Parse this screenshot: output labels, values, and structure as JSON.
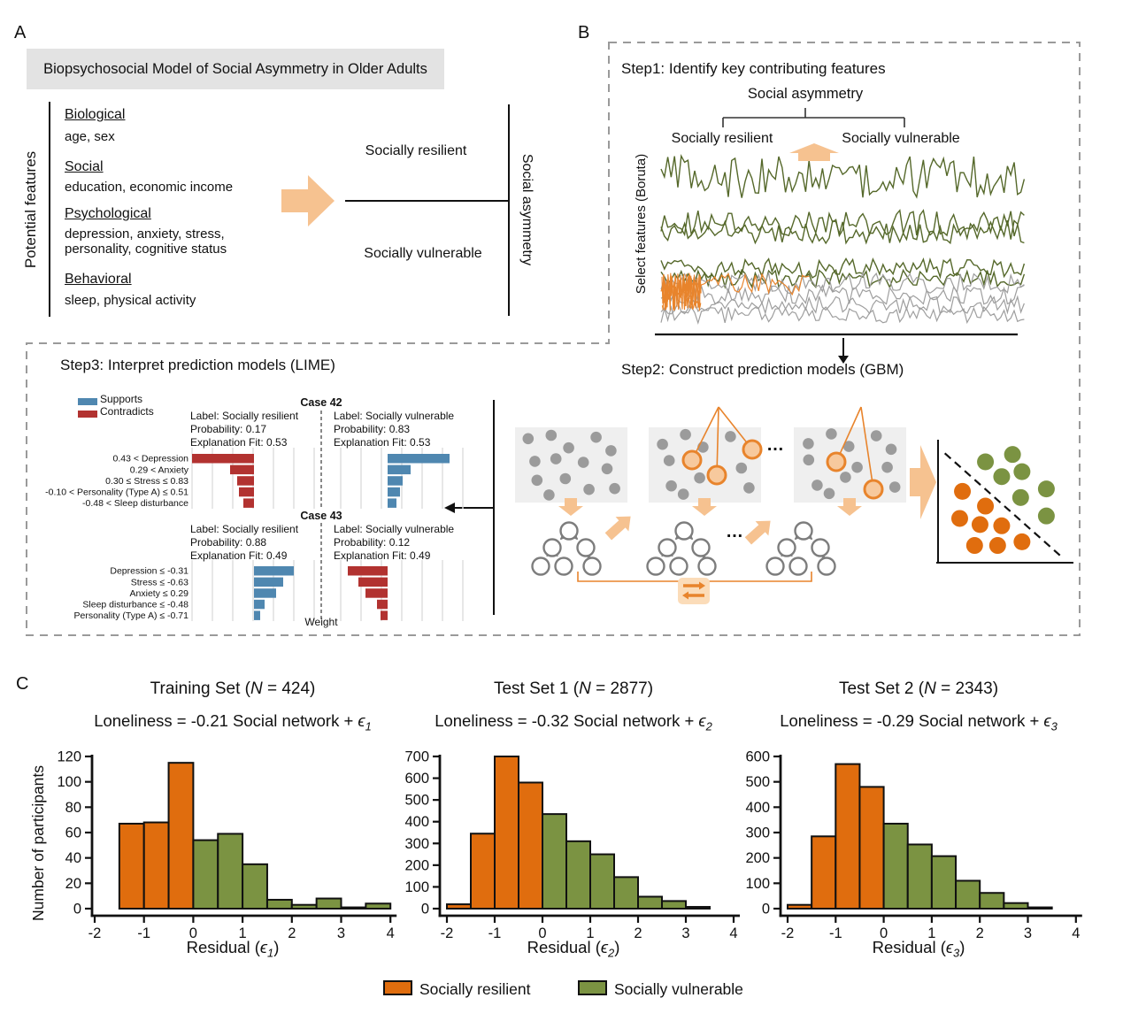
{
  "palette": {
    "resilient": "#e06d0e",
    "vulnerable": "#7b9342",
    "supports": "#4f87b0",
    "contradicts": "#b23230",
    "accent_arrow": "#f6c290",
    "accent_orange": "#e8842c",
    "ring_fill": "#f7c99d",
    "icon_bg": "#fbdcb9",
    "line_olive": "#55682a",
    "line_gray": "#9e9e9e",
    "box_bg": "#efefef",
    "dot_gray": "#9b9b9b",
    "title_bar_bg": "#e3e3e3",
    "dash_border": "#9a9a9a"
  },
  "panel_a": {
    "label": "A",
    "title": "Biopsychosocial Model of Social Asymmetry in Older Adults",
    "left_axis_label": "Potential features",
    "right_axis_label": "Social asymmetry",
    "features": [
      {
        "heading": "Biological",
        "detail": "age, sex"
      },
      {
        "heading": "Social",
        "detail": "education, economic income"
      },
      {
        "heading": "Psychological",
        "detail": "depression, anxiety, stress, personality, cognitive status"
      },
      {
        "heading": "Behavioral",
        "detail": "sleep, physical activity"
      }
    ],
    "outcome_top": "Socially resilient",
    "outcome_bottom": "Socially vulnerable"
  },
  "panel_b": {
    "label": "B",
    "step1": {
      "title": "Step1: Identify key contributing features",
      "root_label": "Social asymmetry",
      "left_label": "Socially resilient",
      "right_label": "Socially vulnerable",
      "y_axis_label": "Select features (Boruta)"
    },
    "step2": {
      "title": "Step2: Construct prediction models (GBM)",
      "ellipsis": "…"
    }
  },
  "step3": {
    "title": "Step3: Interpret prediction models (LIME)",
    "legend": [
      {
        "label": "Supports",
        "role": "supports"
      },
      {
        "label": "Contradicts",
        "role": "contradicts"
      }
    ],
    "xlabel": "Weight"
  },
  "panel_c": {
    "label": "C",
    "ylabel": "Number of participants",
    "legend": [
      {
        "label": "Socially resilient",
        "group": "resilient"
      },
      {
        "label": "Socially vulnerable",
        "group": "vulnerable"
      }
    ]
  },
  "chart_data": [
    {
      "type": "bar",
      "name": "training-set-histogram",
      "title_pre": "Training Set (",
      "title_n": "N",
      "title_post": " = 424)",
      "subtitle_pre": "Loneliness = -0.21 Social network + ",
      "eps": "ϵ",
      "eps_sub": "1",
      "xlabel_pre": "Residual (",
      "xlabel_post": ")",
      "xlim": [
        -2,
        4
      ],
      "ylim": [
        0,
        120
      ],
      "xticks": [
        -2,
        -1,
        0,
        1,
        2,
        3,
        4
      ],
      "yticks": [
        0,
        20,
        40,
        60,
        80,
        100,
        120
      ],
      "bin_width": 0.5,
      "bins": [
        {
          "start": -1.5,
          "value": 67,
          "group": "resilient"
        },
        {
          "start": -1.0,
          "value": 68,
          "group": "resilient"
        },
        {
          "start": -0.5,
          "value": 115,
          "group": "resilient"
        },
        {
          "start": 0.0,
          "value": 54,
          "group": "vulnerable"
        },
        {
          "start": 0.5,
          "value": 59,
          "group": "vulnerable"
        },
        {
          "start": 1.0,
          "value": 35,
          "group": "vulnerable"
        },
        {
          "start": 1.5,
          "value": 7,
          "group": "vulnerable"
        },
        {
          "start": 2.0,
          "value": 3,
          "group": "vulnerable"
        },
        {
          "start": 2.5,
          "value": 8,
          "group": "vulnerable"
        },
        {
          "start": 3.0,
          "value": 1,
          "group": "vulnerable"
        },
        {
          "start": 3.5,
          "value": 4,
          "group": "vulnerable"
        }
      ]
    },
    {
      "type": "bar",
      "name": "test-set-1-histogram",
      "title_pre": "Test Set 1 (",
      "title_n": "N",
      "title_post": " = 2877)",
      "subtitle_pre": "Loneliness = -0.32 Social network + ",
      "eps": "ϵ",
      "eps_sub": "2",
      "xlabel_pre": "Residual (",
      "xlabel_post": ")",
      "xlim": [
        -2,
        4
      ],
      "ylim": [
        0,
        700
      ],
      "xticks": [
        -2,
        -1,
        0,
        1,
        2,
        3,
        4
      ],
      "yticks": [
        0,
        100,
        200,
        300,
        400,
        500,
        600,
        700
      ],
      "bin_width": 0.5,
      "bins": [
        {
          "start": -2.0,
          "value": 20,
          "group": "resilient"
        },
        {
          "start": -1.5,
          "value": 345,
          "group": "resilient"
        },
        {
          "start": -1.0,
          "value": 700,
          "group": "resilient"
        },
        {
          "start": -0.5,
          "value": 580,
          "group": "resilient"
        },
        {
          "start": 0.0,
          "value": 435,
          "group": "vulnerable"
        },
        {
          "start": 0.5,
          "value": 310,
          "group": "vulnerable"
        },
        {
          "start": 1.0,
          "value": 250,
          "group": "vulnerable"
        },
        {
          "start": 1.5,
          "value": 145,
          "group": "vulnerable"
        },
        {
          "start": 2.0,
          "value": 55,
          "group": "vulnerable"
        },
        {
          "start": 2.5,
          "value": 35,
          "group": "vulnerable"
        },
        {
          "start": 3.0,
          "value": 8,
          "group": "vulnerable"
        }
      ]
    },
    {
      "type": "bar",
      "name": "test-set-2-histogram",
      "title_pre": "Test Set 2 (",
      "title_n": "N",
      "title_post": " = 2343)",
      "subtitle_pre": "Loneliness = -0.29 Social network + ",
      "eps": "ϵ",
      "eps_sub": "3",
      "xlabel_pre": "Residual (",
      "xlabel_post": ")",
      "xlim": [
        -2,
        4
      ],
      "ylim": [
        0,
        600
      ],
      "xticks": [
        -2,
        -1,
        0,
        1,
        2,
        3,
        4
      ],
      "yticks": [
        0,
        100,
        200,
        300,
        400,
        500,
        600
      ],
      "bin_width": 0.5,
      "bins": [
        {
          "start": -2.0,
          "value": 15,
          "group": "resilient"
        },
        {
          "start": -1.5,
          "value": 285,
          "group": "resilient"
        },
        {
          "start": -1.0,
          "value": 570,
          "group": "resilient"
        },
        {
          "start": -0.5,
          "value": 480,
          "group": "resilient"
        },
        {
          "start": 0.0,
          "value": 335,
          "group": "vulnerable"
        },
        {
          "start": 0.5,
          "value": 253,
          "group": "vulnerable"
        },
        {
          "start": 1.0,
          "value": 207,
          "group": "vulnerable"
        },
        {
          "start": 1.5,
          "value": 110,
          "group": "vulnerable"
        },
        {
          "start": 2.0,
          "value": 62,
          "group": "vulnerable"
        },
        {
          "start": 2.5,
          "value": 22,
          "group": "vulnerable"
        },
        {
          "start": 3.0,
          "value": 5,
          "group": "vulnerable"
        }
      ]
    },
    {
      "type": "bar",
      "subtype": "lime",
      "name": "Case 42",
      "features": [
        "0.43 < Depression",
        "0.29 < Anxiety",
        "0.30 ≤ Stress ≤ 0.83",
        "-0.10 < Personality (Type A) ≤ 0.51",
        "-0.48 < Sleep disturbance"
      ],
      "panels": {
        "left": {
          "label": "Label: Socially resilient",
          "probability": "Probability: 0.17",
          "fit": "Explanation Fit: 0.53",
          "weights": [
            -0.7,
            -0.27,
            -0.19,
            -0.17,
            -0.12
          ]
        },
        "right": {
          "label": "Label: Socially vulnerable",
          "probability": "Probability: 0.83",
          "fit": "Explanation Fit: 0.53",
          "weights": [
            0.7,
            0.26,
            0.17,
            0.14,
            0.1
          ]
        }
      }
    },
    {
      "type": "bar",
      "subtype": "lime",
      "name": "Case 43",
      "features": [
        "Depression ≤ -0.31",
        "Stress ≤ -0.63",
        "Anxiety ≤ 0.29",
        "Sleep disturbance ≤ -0.48",
        "Personality (Type A) ≤ -0.71"
      ],
      "panels": {
        "left": {
          "label": "Label: Socially resilient",
          "probability": "Probability: 0.88",
          "fit": "Explanation Fit: 0.49",
          "weights": [
            0.45,
            0.33,
            0.25,
            0.12,
            0.07
          ]
        },
        "right": {
          "label": "Label: Socially vulnerable",
          "probability": "Probability: 0.12",
          "fit": "Explanation Fit: 0.49",
          "weights": [
            -0.45,
            -0.33,
            -0.25,
            -0.12,
            -0.08
          ]
        }
      }
    },
    {
      "type": "scatter",
      "name": "gbm-classification-scatter",
      "series": [
        {
          "name": "resilient",
          "points": [
            [
              0.18,
              0.42
            ],
            [
              0.35,
              0.54
            ],
            [
              0.16,
              0.64
            ],
            [
              0.31,
              0.69
            ],
            [
              0.47,
              0.7
            ],
            [
              0.27,
              0.86
            ],
            [
              0.44,
              0.86
            ],
            [
              0.62,
              0.83
            ]
          ]
        },
        {
          "name": "vulnerable",
          "points": [
            [
              0.35,
              0.18
            ],
            [
              0.55,
              0.12
            ],
            [
              0.47,
              0.3
            ],
            [
              0.62,
              0.26
            ],
            [
              0.8,
              0.4
            ],
            [
              0.61,
              0.47
            ],
            [
              0.8,
              0.62
            ]
          ]
        }
      ],
      "boundary": [
        [
          0.05,
          0.11
        ],
        [
          0.9,
          0.94
        ]
      ]
    }
  ]
}
